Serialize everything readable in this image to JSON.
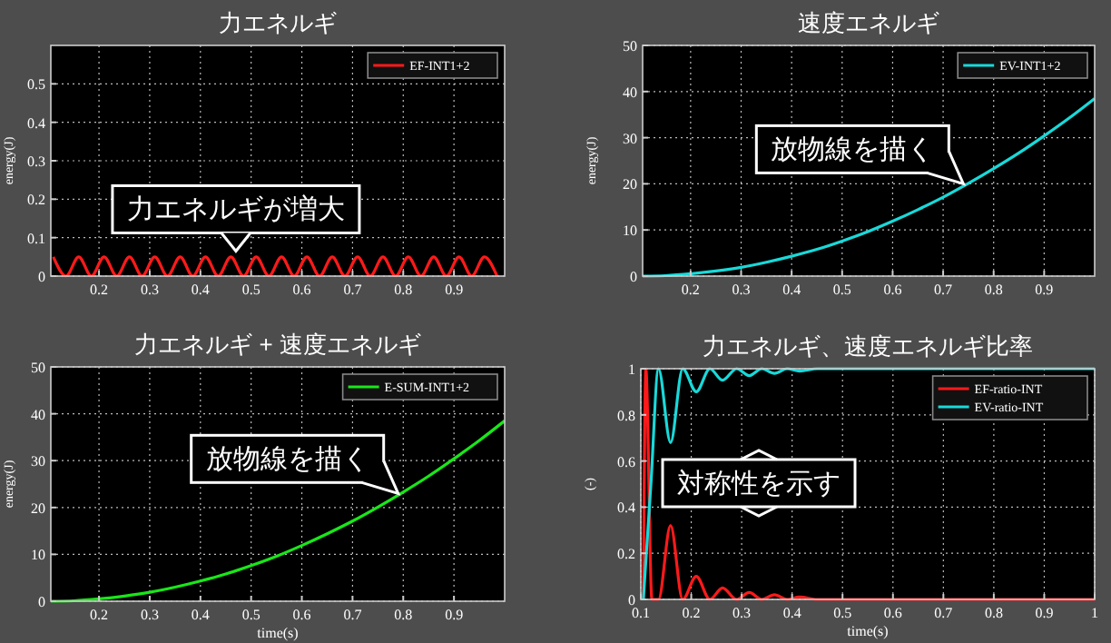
{
  "chart_data": [
    {
      "type": "line",
      "title": "力エネルギ",
      "ylabel": "energy(J)",
      "xlim": [
        0.105,
        1.0
      ],
      "ylim": [
        0,
        0.6
      ],
      "xticks": [
        0.2,
        0.3,
        0.4,
        0.5,
        0.6,
        0.7,
        0.8,
        0.9
      ],
      "yticks": [
        0,
        0.1,
        0.2,
        0.3,
        0.4,
        0.5
      ],
      "grid": true,
      "legend": "top right",
      "series": [
        {
          "name": "EF-INT1+2",
          "color": "#ff1a1a",
          "x": [
            0.11,
            0.135,
            0.16,
            0.185,
            0.21,
            0.235,
            0.26,
            0.285,
            0.31,
            0.335,
            0.36,
            0.385,
            0.41,
            0.435,
            0.46,
            0.485,
            0.51,
            0.535,
            0.56,
            0.585,
            0.61,
            0.635,
            0.66,
            0.685,
            0.71,
            0.735,
            0.76,
            0.785,
            0.81,
            0.835,
            0.86,
            0.885,
            0.91,
            0.935,
            0.96,
            0.985
          ],
          "values": [
            0.05,
            0,
            0.05,
            0,
            0.05,
            0,
            0.05,
            0,
            0.05,
            0,
            0.05,
            0,
            0.05,
            0,
            0.05,
            0,
            0.05,
            0,
            0.05,
            0,
            0.05,
            0,
            0.05,
            0,
            0.05,
            0,
            0.05,
            0,
            0.05,
            0,
            0.05,
            0,
            0.05,
            0,
            0.05,
            0
          ]
        }
      ],
      "annotations": [
        {
          "text": "力エネルギが増大",
          "x": 0.47,
          "y": 0.065
        }
      ]
    },
    {
      "type": "line",
      "title": "速度エネルギ",
      "ylabel": "energy(J)",
      "xlim": [
        0.105,
        1.0
      ],
      "ylim": [
        0,
        50
      ],
      "xticks": [
        0.2,
        0.3,
        0.4,
        0.5,
        0.6,
        0.7,
        0.8,
        0.9
      ],
      "yticks": [
        0,
        10,
        20,
        30,
        40,
        50
      ],
      "grid": true,
      "legend": "top right",
      "series": [
        {
          "name": "EV-INT1+2",
          "color": "#19d9d9",
          "x": [
            0.105,
            0.15,
            0.2,
            0.25,
            0.3,
            0.35,
            0.4,
            0.45,
            0.5,
            0.55,
            0.6,
            0.65,
            0.7,
            0.75,
            0.8,
            0.85,
            0.9,
            0.95,
            1.0
          ],
          "values": [
            0,
            0.1,
            0.5,
            1.1,
            1.9,
            3.0,
            4.3,
            5.8,
            7.6,
            9.6,
            11.9,
            14.4,
            17.1,
            20.1,
            23.3,
            26.7,
            30.4,
            34.3,
            38.5
          ]
        }
      ],
      "annotations": [
        {
          "text": "放物線を描く",
          "x": 0.74,
          "y": 20
        }
      ]
    },
    {
      "type": "line",
      "title": "力エネルギ + 速度エネルギ",
      "xlabel": "time(s)",
      "ylabel": "energy(J)",
      "xlim": [
        0.105,
        1.0
      ],
      "ylim": [
        0,
        50
      ],
      "xticks": [
        0.2,
        0.3,
        0.4,
        0.5,
        0.6,
        0.7,
        0.8,
        0.9
      ],
      "yticks": [
        0,
        10,
        20,
        30,
        40,
        50
      ],
      "grid": true,
      "legend": "top right",
      "series": [
        {
          "name": "E-SUM-INT1+2",
          "color": "#19e619",
          "x": [
            0.105,
            0.15,
            0.2,
            0.25,
            0.3,
            0.35,
            0.4,
            0.45,
            0.5,
            0.55,
            0.6,
            0.65,
            0.7,
            0.75,
            0.8,
            0.85,
            0.9,
            0.95,
            1.0
          ],
          "values": [
            0,
            0.1,
            0.5,
            1.1,
            1.9,
            3.0,
            4.3,
            5.8,
            7.6,
            9.6,
            11.9,
            14.4,
            17.1,
            20.1,
            23.3,
            26.7,
            30.4,
            34.3,
            38.5
          ]
        }
      ],
      "annotations": [
        {
          "text": "放物線を描く",
          "x": 0.79,
          "y": 23
        }
      ]
    },
    {
      "type": "line",
      "title": "力エネルギ、速度エネルギ比率",
      "xlabel": "time(s)",
      "ylabel": "(-)",
      "xlim": [
        0.1,
        1
      ],
      "ylim": [
        0,
        1
      ],
      "xticks": [
        0.1,
        0.2,
        0.3,
        0.4,
        0.5,
        0.6,
        0.7,
        0.8,
        0.9,
        1
      ],
      "yticks": [
        0,
        0.2,
        0.4,
        0.6,
        0.8,
        1
      ],
      "grid": true,
      "legend": "top right",
      "series": [
        {
          "name": "EF-ratio-INT",
          "color": "#ff1a1a",
          "x": [
            0.105,
            0.11,
            0.122,
            0.135,
            0.159,
            0.183,
            0.21,
            0.237,
            0.262,
            0.29,
            0.315,
            0.34,
            0.365,
            0.39,
            0.415,
            0.45,
            0.5,
            0.6,
            0.8,
            1.0
          ],
          "values": [
            0,
            1,
            0,
            0,
            0.32,
            0,
            0.1,
            0,
            0.05,
            0,
            0.03,
            0,
            0.02,
            0,
            0.01,
            0,
            0,
            0,
            0,
            0
          ]
        },
        {
          "name": "EV-ratio-INT",
          "color": "#19d9d9",
          "x": [
            0.105,
            0.12,
            0.135,
            0.159,
            0.183,
            0.21,
            0.237,
            0.262,
            0.29,
            0.315,
            0.34,
            0.365,
            0.39,
            0.415,
            0.45,
            0.5,
            0.6,
            0.8,
            1.0
          ],
          "values": [
            0,
            0.5,
            1,
            0.68,
            1,
            0.9,
            1,
            0.95,
            1,
            0.97,
            1,
            0.98,
            1,
            0.99,
            1,
            1,
            1,
            1,
            1
          ]
        }
      ],
      "annotations": [
        "対称性を示す"
      ]
    }
  ]
}
